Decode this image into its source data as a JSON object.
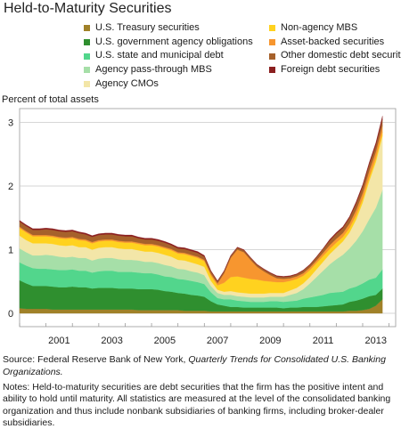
{
  "header": {
    "title": "Held-to-Maturity Securities"
  },
  "chart_data": {
    "type": "area",
    "stacked": true,
    "title": "Held-to-Maturity Securities",
    "ylabel": "Percent of total assets",
    "xlabel": "",
    "ylim": [
      0,
      3.2
    ],
    "yticks": [
      "0",
      "1",
      "2",
      "3"
    ],
    "xticks": [
      "2001",
      "2003",
      "2005",
      "2007",
      "2009",
      "2011",
      "2013"
    ],
    "grid": true,
    "legend_position": "top",
    "x": [
      2000.0,
      2000.25,
      2000.5,
      2000.75,
      2001.0,
      2001.25,
      2001.5,
      2001.75,
      2002.0,
      2002.25,
      2002.5,
      2002.75,
      2003.0,
      2003.25,
      2003.5,
      2003.75,
      2004.0,
      2004.25,
      2004.5,
      2004.75,
      2005.0,
      2005.25,
      2005.5,
      2005.75,
      2006.0,
      2006.25,
      2006.5,
      2006.75,
      2007.0,
      2007.25,
      2007.5,
      2007.75,
      2008.0,
      2008.25,
      2008.5,
      2008.75,
      2009.0,
      2009.25,
      2009.5,
      2009.75,
      2010.0,
      2010.25,
      2010.5,
      2010.75,
      2011.0,
      2011.25,
      2011.5,
      2011.75,
      2012.0,
      2012.25,
      2012.5,
      2012.75,
      2013.0,
      2013.25,
      2013.5,
      2013.75
    ],
    "series": [
      {
        "name": "U.S. Treasury securities",
        "color": "#a08128",
        "values": [
          0.08,
          0.07,
          0.07,
          0.07,
          0.07,
          0.06,
          0.06,
          0.06,
          0.06,
          0.06,
          0.06,
          0.06,
          0.06,
          0.06,
          0.06,
          0.06,
          0.06,
          0.06,
          0.05,
          0.05,
          0.05,
          0.05,
          0.05,
          0.05,
          0.05,
          0.04,
          0.04,
          0.04,
          0.04,
          0.03,
          0.03,
          0.03,
          0.03,
          0.03,
          0.03,
          0.03,
          0.03,
          0.03,
          0.03,
          0.03,
          0.03,
          0.03,
          0.03,
          0.03,
          0.03,
          0.03,
          0.03,
          0.03,
          0.03,
          0.03,
          0.04,
          0.04,
          0.05,
          0.07,
          0.12,
          0.22
        ]
      },
      {
        "name": "U.S. government agency obligations",
        "color": "#2f8f2f",
        "values": [
          0.44,
          0.4,
          0.36,
          0.36,
          0.36,
          0.36,
          0.35,
          0.35,
          0.36,
          0.35,
          0.35,
          0.33,
          0.34,
          0.34,
          0.34,
          0.33,
          0.33,
          0.33,
          0.33,
          0.33,
          0.33,
          0.32,
          0.3,
          0.29,
          0.27,
          0.27,
          0.25,
          0.24,
          0.22,
          0.16,
          0.11,
          0.09,
          0.07,
          0.07,
          0.06,
          0.06,
          0.06,
          0.06,
          0.06,
          0.06,
          0.05,
          0.06,
          0.06,
          0.07,
          0.07,
          0.07,
          0.08,
          0.09,
          0.1,
          0.11,
          0.14,
          0.16,
          0.18,
          0.2,
          0.17,
          0.17
        ]
      },
      {
        "name": "U.S. state and municipal debt",
        "color": "#52d68c",
        "values": [
          0.28,
          0.28,
          0.28,
          0.27,
          0.27,
          0.27,
          0.27,
          0.27,
          0.27,
          0.26,
          0.26,
          0.25,
          0.26,
          0.27,
          0.27,
          0.26,
          0.26,
          0.26,
          0.26,
          0.25,
          0.25,
          0.24,
          0.23,
          0.23,
          0.22,
          0.22,
          0.22,
          0.21,
          0.2,
          0.14,
          0.1,
          0.1,
          0.12,
          0.1,
          0.1,
          0.09,
          0.09,
          0.09,
          0.1,
          0.1,
          0.1,
          0.1,
          0.11,
          0.13,
          0.15,
          0.17,
          0.18,
          0.2,
          0.2,
          0.2,
          0.21,
          0.22,
          0.24,
          0.26,
          0.27,
          0.3
        ]
      },
      {
        "name": "Agency pass-through MBS",
        "color": "#a6dfa8",
        "values": [
          0.22,
          0.21,
          0.2,
          0.21,
          0.22,
          0.22,
          0.21,
          0.2,
          0.2,
          0.2,
          0.2,
          0.19,
          0.2,
          0.2,
          0.2,
          0.2,
          0.19,
          0.19,
          0.19,
          0.18,
          0.18,
          0.18,
          0.18,
          0.17,
          0.16,
          0.16,
          0.15,
          0.15,
          0.14,
          0.1,
          0.08,
          0.07,
          0.07,
          0.07,
          0.07,
          0.07,
          0.07,
          0.07,
          0.07,
          0.07,
          0.08,
          0.1,
          0.12,
          0.15,
          0.22,
          0.3,
          0.38,
          0.45,
          0.52,
          0.58,
          0.63,
          0.72,
          0.82,
          0.95,
          1.1,
          1.25
        ]
      },
      {
        "name": "Agency CMOs",
        "color": "#f3e6a8",
        "values": [
          0.2,
          0.19,
          0.19,
          0.19,
          0.18,
          0.18,
          0.18,
          0.18,
          0.18,
          0.17,
          0.17,
          0.17,
          0.17,
          0.17,
          0.17,
          0.17,
          0.17,
          0.17,
          0.16,
          0.16,
          0.16,
          0.16,
          0.16,
          0.15,
          0.14,
          0.14,
          0.14,
          0.13,
          0.13,
          0.08,
          0.05,
          0.05,
          0.06,
          0.06,
          0.06,
          0.06,
          0.06,
          0.06,
          0.06,
          0.06,
          0.06,
          0.07,
          0.08,
          0.09,
          0.1,
          0.12,
          0.14,
          0.16,
          0.18,
          0.21,
          0.25,
          0.33,
          0.45,
          0.6,
          0.72,
          0.85
        ]
      },
      {
        "name": "Non-agency MBS",
        "color": "#ffd21f",
        "values": [
          0.12,
          0.12,
          0.11,
          0.11,
          0.11,
          0.11,
          0.11,
          0.11,
          0.11,
          0.11,
          0.1,
          0.1,
          0.1,
          0.1,
          0.1,
          0.1,
          0.1,
          0.1,
          0.1,
          0.1,
          0.1,
          0.1,
          0.1,
          0.1,
          0.1,
          0.1,
          0.1,
          0.1,
          0.09,
          0.08,
          0.07,
          0.14,
          0.22,
          0.25,
          0.24,
          0.23,
          0.22,
          0.2,
          0.18,
          0.17,
          0.17,
          0.15,
          0.14,
          0.12,
          0.11,
          0.1,
          0.09,
          0.08,
          0.08,
          0.07,
          0.07,
          0.07,
          0.06,
          0.06,
          0.06,
          0.06
        ]
      },
      {
        "name": "Asset-backed securities",
        "color": "#f7962f",
        "values": [
          0.02,
          0.02,
          0.02,
          0.02,
          0.02,
          0.02,
          0.02,
          0.02,
          0.02,
          0.02,
          0.02,
          0.02,
          0.02,
          0.02,
          0.02,
          0.02,
          0.02,
          0.02,
          0.02,
          0.02,
          0.02,
          0.02,
          0.02,
          0.02,
          0.02,
          0.02,
          0.02,
          0.02,
          0.02,
          0.03,
          0.03,
          0.15,
          0.3,
          0.42,
          0.4,
          0.3,
          0.2,
          0.15,
          0.1,
          0.06,
          0.05,
          0.04,
          0.04,
          0.04,
          0.04,
          0.04,
          0.05,
          0.06,
          0.06,
          0.06,
          0.07,
          0.08,
          0.09,
          0.1,
          0.1,
          0.1
        ]
      },
      {
        "name": "Other domestic debt securities",
        "color": "#a6612b",
        "values": [
          0.08,
          0.08,
          0.08,
          0.08,
          0.09,
          0.09,
          0.09,
          0.09,
          0.09,
          0.09,
          0.08,
          0.08,
          0.08,
          0.08,
          0.08,
          0.08,
          0.08,
          0.08,
          0.07,
          0.07,
          0.07,
          0.07,
          0.07,
          0.06,
          0.06,
          0.06,
          0.06,
          0.06,
          0.05,
          0.04,
          0.03,
          0.03,
          0.03,
          0.03,
          0.03,
          0.03,
          0.03,
          0.03,
          0.03,
          0.03,
          0.03,
          0.03,
          0.03,
          0.04,
          0.04,
          0.05,
          0.06,
          0.07,
          0.08,
          0.08,
          0.09,
          0.1,
          0.1,
          0.1,
          0.1,
          0.1
        ]
      },
      {
        "name": "Foreign debt securities",
        "color": "#8b1f1f",
        "values": [
          0.02,
          0.02,
          0.02,
          0.02,
          0.02,
          0.02,
          0.02,
          0.02,
          0.02,
          0.02,
          0.02,
          0.02,
          0.02,
          0.02,
          0.02,
          0.02,
          0.02,
          0.02,
          0.02,
          0.02,
          0.02,
          0.02,
          0.02,
          0.02,
          0.02,
          0.02,
          0.02,
          0.02,
          0.02,
          0.01,
          0.01,
          0.01,
          0.01,
          0.01,
          0.01,
          0.01,
          0.01,
          0.01,
          0.01,
          0.01,
          0.01,
          0.01,
          0.01,
          0.01,
          0.01,
          0.01,
          0.01,
          0.02,
          0.02,
          0.02,
          0.02,
          0.03,
          0.03,
          0.03,
          0.04,
          0.05
        ]
      }
    ]
  },
  "legend_order": [
    "U.S. Treasury securities",
    "U.S. government agency obligations",
    "U.S. state and municipal debt",
    "Agency pass-through MBS",
    "Agency CMOs",
    "Non-agency MBS",
    "Asset-backed securities",
    "Other domestic debt securities",
    "Foreign debt securities"
  ],
  "source": {
    "prefix": "Source: Federal Reserve Bank of New York, ",
    "italic": "Quarterly Trends for Consolidated U.S. Banking Organizations."
  },
  "notes": "Notes: Held-to-maturity securities are debt securities that the firm has the positive intent and ability to hold until maturity. All statistics are measured at the level of the consolidated banking organization and thus include nonbank subsidiaries of banking firms, including broker-dealer subsidiaries."
}
